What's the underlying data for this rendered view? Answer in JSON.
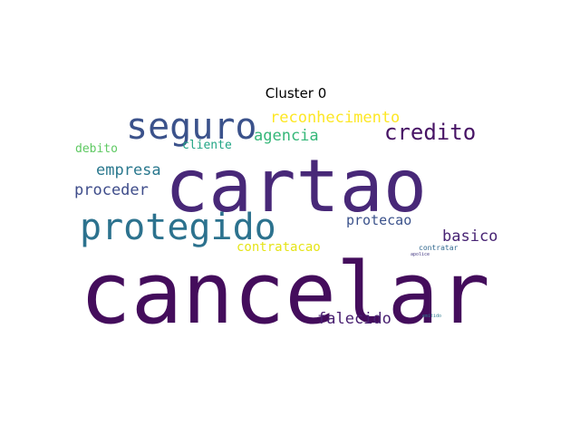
{
  "title": "Cluster 0",
  "words": [
    {
      "text": "cartao",
      "color": "#482878"
    },
    {
      "text": "cancelar",
      "color": "#440d5c"
    },
    {
      "text": "protegido",
      "color": "#2c728e"
    },
    {
      "text": "seguro",
      "color": "#3b528b"
    },
    {
      "text": "credito",
      "color": "#471365"
    },
    {
      "text": "reconhecimento",
      "color": "#fde725"
    },
    {
      "text": "agencia",
      "color": "#35b779"
    },
    {
      "text": "cliente",
      "color": "#21a585"
    },
    {
      "text": "debito",
      "color": "#5ec962"
    },
    {
      "text": "empresa",
      "color": "#2a788e"
    },
    {
      "text": "proceder",
      "color": "#3e4c8a"
    },
    {
      "text": "protecao",
      "color": "#3b528b"
    },
    {
      "text": "basico",
      "color": "#482474"
    },
    {
      "text": "contratacao",
      "color": "#e5e419"
    },
    {
      "text": "falecido",
      "color": "#481f70"
    },
    {
      "text": "contratar",
      "color": "#31688e"
    },
    {
      "text": "apolice",
      "color": "#443983"
    },
    {
      "text": "emitido",
      "color": "#2a788e"
    }
  ]
}
